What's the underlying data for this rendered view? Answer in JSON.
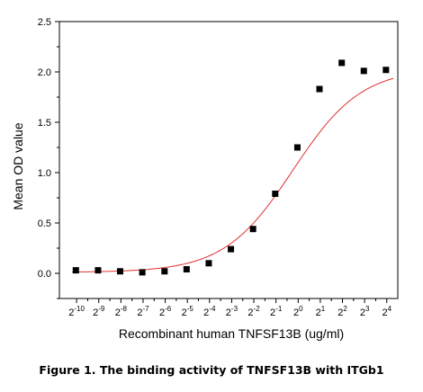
{
  "caption": "Figure 1. The binding activity of TNFSF13B with ITGb1",
  "chart_data": {
    "type": "scatter",
    "xlabel": "Recombinant human TNFSF13B (ug/ml)",
    "ylabel": "Mean OD value",
    "x_scale": "log2",
    "x_ticks": [
      {
        "base": "2",
        "exp": "-10"
      },
      {
        "base": "2",
        "exp": "-9"
      },
      {
        "base": "2",
        "exp": "-8"
      },
      {
        "base": "2",
        "exp": "-7"
      },
      {
        "base": "2",
        "exp": "-6"
      },
      {
        "base": "2",
        "exp": "-5"
      },
      {
        "base": "2",
        "exp": "-4"
      },
      {
        "base": "2",
        "exp": "-3"
      },
      {
        "base": "2",
        "exp": "-2"
      },
      {
        "base": "2",
        "exp": "-1"
      },
      {
        "base": "2",
        "exp": "0"
      },
      {
        "base": "2",
        "exp": "1"
      },
      {
        "base": "2",
        "exp": "2"
      },
      {
        "base": "2",
        "exp": "3"
      },
      {
        "base": "2",
        "exp": "4"
      }
    ],
    "y_ticks": [
      "0.0",
      "0.5",
      "1.0",
      "1.5",
      "2.0",
      "2.5"
    ],
    "xlim": [
      0.00057,
      22.6
    ],
    "ylim": [
      -0.25,
      2.5
    ],
    "points": {
      "color": "#000000",
      "x": [
        0.000954,
        0.00191,
        0.00381,
        0.00763,
        0.0153,
        0.0305,
        0.061,
        0.122,
        0.244,
        0.488,
        0.977,
        1.95,
        3.91,
        7.81,
        15.6
      ],
      "y": [
        0.03,
        0.03,
        0.02,
        0.01,
        0.02,
        0.04,
        0.1,
        0.24,
        0.44,
        0.79,
        1.25,
        1.83,
        2.09,
        2.01,
        2.02
      ]
    },
    "fit_curve": {
      "color": "#e03030",
      "bottom": 0.01,
      "top": 2.04,
      "ec50": 0.85,
      "hill": 0.93
    }
  }
}
